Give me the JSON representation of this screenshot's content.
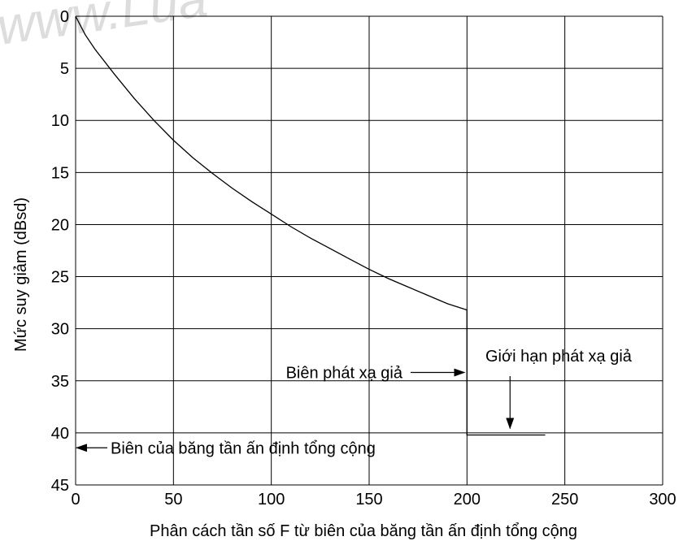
{
  "watermark": "www.Lua",
  "chart_data": {
    "type": "line",
    "xlabel": "Phân cách tần số F từ biên của băng tần ấn định tổng cộng",
    "ylabel": "Mức suy giảm (dBsd)",
    "xlim": [
      0,
      300
    ],
    "ylim": [
      0,
      45
    ],
    "y_inverted": true,
    "grid": true,
    "x_ticks": [
      "0",
      "50",
      "100",
      "150",
      "200",
      "250",
      "300"
    ],
    "y_ticks": [
      "0",
      "5",
      "10",
      "15",
      "20",
      "25",
      "30",
      "35",
      "40",
      "45"
    ],
    "series": [
      {
        "x": [
          0,
          5,
          10,
          20,
          30,
          40,
          50,
          60,
          70,
          80,
          90,
          100,
          110,
          120,
          130,
          140,
          150,
          160,
          170,
          180,
          190,
          200,
          200,
          240
        ],
        "y": [
          0,
          1.8,
          3.2,
          5.6,
          7.9,
          10.0,
          11.9,
          13.6,
          15.1,
          16.5,
          17.8,
          19.0,
          20.2,
          21.3,
          22.3,
          23.3,
          24.3,
          25.2,
          26.0,
          26.8,
          27.6,
          28.2,
          40.2,
          40.2
        ]
      }
    ],
    "annotations": [
      {
        "text": "Biên phát xạ giả",
        "arrow": "right",
        "x": 200,
        "y": 34.2
      },
      {
        "text": "Giới hạn phát xạ giả",
        "arrow": "down",
        "x": 222,
        "y": 40.2
      },
      {
        "text": "Biên của băng tần ấn định tổng cộng",
        "arrow": "left",
        "x": 0,
        "y": 41.2
      }
    ]
  }
}
